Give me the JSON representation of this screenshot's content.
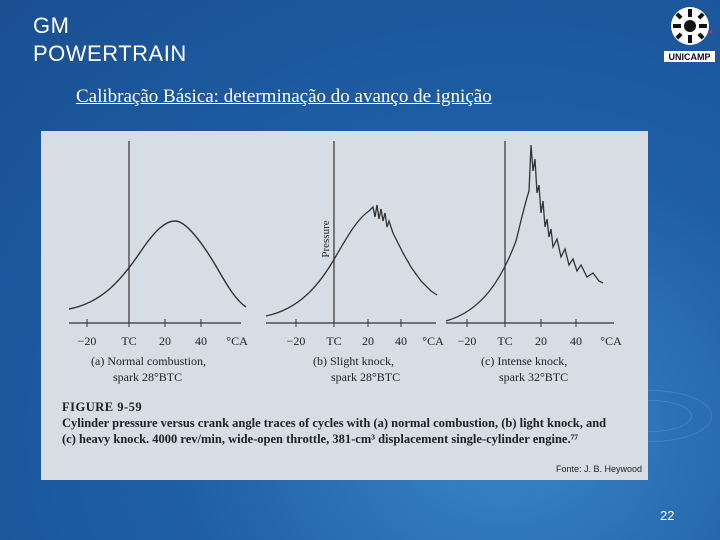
{
  "header": {
    "brand_line1": "GM",
    "brand_line2": "POWERTRAIN",
    "logo_text": "UNICAMP"
  },
  "slide": {
    "title": "Calibração Básica: determinação do avanço de ignição",
    "page_number": "22"
  },
  "figure": {
    "y_axis_label": "Pressure",
    "tick_labels": [
      "−20",
      "TC",
      "20",
      "40",
      "°CA"
    ],
    "panels": [
      {
        "label_line1": "(a) Normal combustion,",
        "label_line2": "spark 28°BTC"
      },
      {
        "label_line1": "(b) Slight knock,",
        "label_line2": "spark 28°BTC"
      },
      {
        "label_line1": "(c) Intense knock,",
        "label_line2": "spark 32°BTC"
      }
    ],
    "caption_title": "FIGURE 9-59",
    "caption_line1": "Cylinder pressure versus crank angle traces of cycles with (a) normal combustion, (b) light knock, and",
    "caption_line2": "(c) heavy knock. 4000 rev/min, wide-open throttle, 381-cm³ displacement single-cylinder engine.⁷⁷",
    "source": "Fonte: J. B. Heywood"
  }
}
